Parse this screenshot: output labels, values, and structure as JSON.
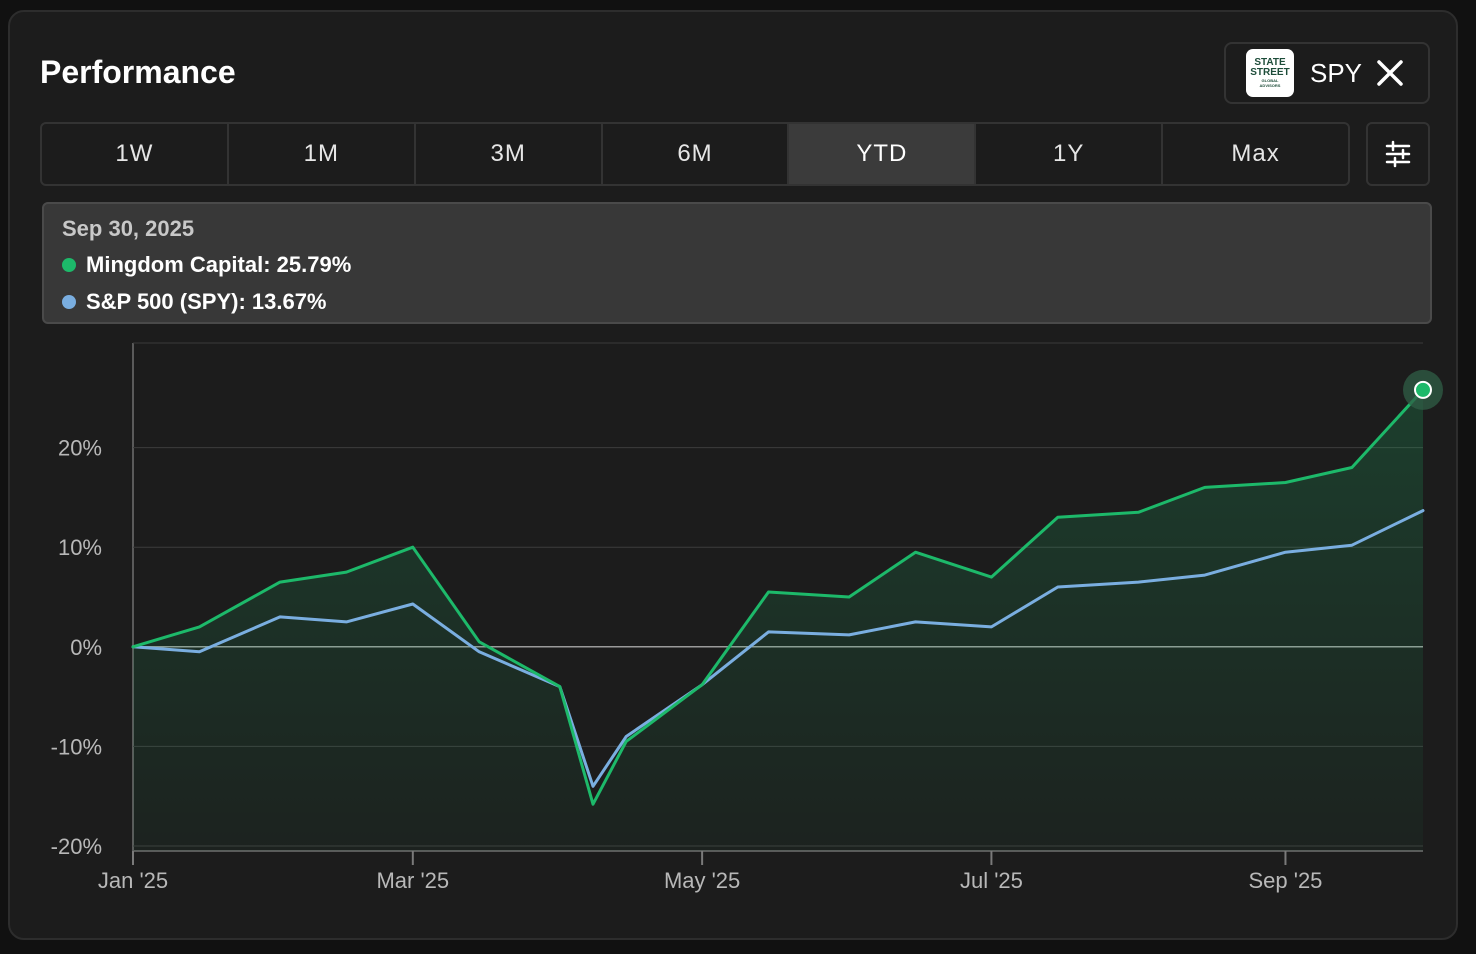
{
  "header": {
    "title": "Performance"
  },
  "benchmark": {
    "logo_lines": [
      "STATE",
      "STREET",
      "GLOBAL",
      "ADVISORS"
    ],
    "ticker": "SPY",
    "close_icon": "close-icon"
  },
  "tabs": [
    {
      "label": "1W",
      "active": false
    },
    {
      "label": "1M",
      "active": false
    },
    {
      "label": "3M",
      "active": false
    },
    {
      "label": "6M",
      "active": false
    },
    {
      "label": "YTD",
      "active": true
    },
    {
      "label": "1Y",
      "active": false
    },
    {
      "label": "Max",
      "active": false
    }
  ],
  "settings_icon": "sliders-icon",
  "tooltip": {
    "date": "Sep 30, 2025",
    "rows": [
      {
        "label": "Mingdom Capital: 25.79%",
        "color": "#1db96a"
      },
      {
        "label": "S&P 500 (SPY): 13.67%",
        "color": "#7aaee0"
      }
    ]
  },
  "chart_data": {
    "type": "line",
    "x": [
      "2025-01-01",
      "2025-01-15",
      "2025-02-01",
      "2025-02-15",
      "2025-03-01",
      "2025-03-15",
      "2025-04-01",
      "2025-04-08",
      "2025-04-15",
      "2025-05-01",
      "2025-05-15",
      "2025-06-01",
      "2025-06-15",
      "2025-07-01",
      "2025-07-15",
      "2025-08-01",
      "2025-08-15",
      "2025-09-01",
      "2025-09-15",
      "2025-09-30"
    ],
    "series": [
      {
        "name": "Mingdom Capital",
        "color": "#1db96a",
        "values": [
          0,
          2,
          6.5,
          7.5,
          10,
          0.5,
          -4,
          -15.8,
          -9.5,
          -3.8,
          5.5,
          5,
          9.5,
          7,
          13,
          13.5,
          16,
          16.5,
          18,
          25.79
        ]
      },
      {
        "name": "S&P 500 (SPY)",
        "color": "#7aaee0",
        "values": [
          0,
          -0.5,
          3,
          2.5,
          4.3,
          -0.5,
          -4,
          -14,
          -9,
          -3.8,
          1.5,
          1.2,
          2.5,
          2,
          6,
          6.5,
          7.2,
          9.5,
          10.2,
          13.67
        ]
      }
    ],
    "yticks": [
      {
        "value": 20,
        "label": "20%"
      },
      {
        "value": 10,
        "label": "10%"
      },
      {
        "value": 0,
        "label": "0%"
      },
      {
        "value": -10,
        "label": "-10%"
      },
      {
        "value": -20,
        "label": "-20%"
      }
    ],
    "xticks": [
      {
        "date": "2025-01-01",
        "label": "Jan '25"
      },
      {
        "date": "2025-03-01",
        "label": "Mar '25"
      },
      {
        "date": "2025-05-01",
        "label": "May '25"
      },
      {
        "date": "2025-07-01",
        "label": "Jul '25"
      },
      {
        "date": "2025-09-01",
        "label": "Sep '25"
      }
    ],
    "ylim": [
      -20.5,
      30.5
    ],
    "xlim": [
      "2025-01-01",
      "2025-09-30"
    ],
    "grid": true,
    "legend": "top"
  }
}
